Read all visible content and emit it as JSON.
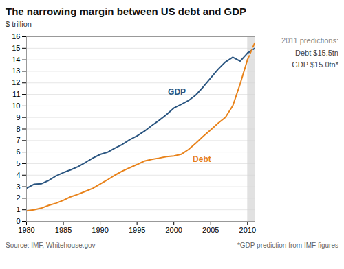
{
  "chart_data": {
    "type": "line",
    "title": "The narrowing margin between US debt and GDP",
    "ylabel": "$ trillion",
    "x": [
      1980,
      1981,
      1982,
      1983,
      1984,
      1985,
      1986,
      1987,
      1988,
      1989,
      1990,
      1991,
      1992,
      1993,
      1994,
      1995,
      1996,
      1997,
      1998,
      1999,
      2000,
      2001,
      2002,
      2003,
      2004,
      2005,
      2006,
      2007,
      2008,
      2009,
      2010,
      2011
    ],
    "series": [
      {
        "name": "GDP",
        "color": "#2a5580",
        "values": [
          2.86,
          3.21,
          3.25,
          3.54,
          3.93,
          4.22,
          4.46,
          4.74,
          5.1,
          5.48,
          5.8,
          5.99,
          6.34,
          6.66,
          7.07,
          7.4,
          7.81,
          8.3,
          8.75,
          9.25,
          9.82,
          10.13,
          10.47,
          10.96,
          11.66,
          12.43,
          13.18,
          13.81,
          14.22,
          13.88,
          14.58,
          15.0
        ]
      },
      {
        "name": "Debt",
        "color": "#e8821a",
        "values": [
          0.91,
          1.0,
          1.14,
          1.38,
          1.57,
          1.82,
          2.13,
          2.34,
          2.6,
          2.86,
          3.23,
          3.6,
          4.0,
          4.35,
          4.64,
          4.92,
          5.22,
          5.37,
          5.48,
          5.61,
          5.67,
          5.81,
          6.23,
          6.78,
          7.38,
          7.93,
          8.51,
          9.01,
          10.02,
          11.91,
          14.02,
          15.5
        ]
      }
    ],
    "prediction_start": 2010,
    "prediction_color": "#d4d4d4",
    "prediction_note": {
      "title": "2011 predictions:",
      "lines": [
        "Debt $15.5tn",
        "GDP $15.0tn*"
      ]
    },
    "sources": [
      "Source: IMF, Whitehouse.gov",
      "*GDP prediction from IMF figures"
    ],
    "xlim": [
      1980,
      2011
    ],
    "xticks": [
      1980,
      1985,
      1990,
      1995,
      2000,
      2005,
      2010
    ],
    "ylim": [
      0,
      16
    ],
    "yticks": [
      0,
      1,
      2,
      3,
      4,
      5,
      6,
      7,
      8,
      9,
      10,
      11,
      12,
      13,
      14,
      15,
      16
    ],
    "grid": "y"
  }
}
